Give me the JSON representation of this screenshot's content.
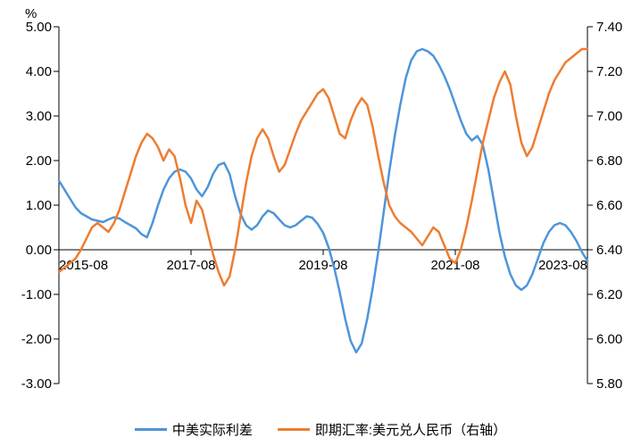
{
  "chart": {
    "type": "line",
    "unit_label": "%",
    "background_color": "#ffffff",
    "axis_color": "#000000",
    "tick_length": 6,
    "line_width": 2.5,
    "title_fontsize": 15,
    "label_fontsize": 15,
    "y_left": {
      "min": -3.0,
      "max": 5.0,
      "ticks": [
        -3.0,
        -2.0,
        -1.0,
        0.0,
        1.0,
        2.0,
        3.0,
        4.0,
        5.0
      ],
      "tick_labels": [
        "-3.00",
        "-2.00",
        "-1.00",
        "0.00",
        "1.00",
        "2.00",
        "3.00",
        "4.00",
        "5.00"
      ]
    },
    "y_right": {
      "min": 5.8,
      "max": 7.4,
      "ticks": [
        5.8,
        6.0,
        6.2,
        6.4,
        6.6,
        6.8,
        7.0,
        7.2,
        7.4
      ],
      "tick_labels": [
        "5.80",
        "6.00",
        "6.20",
        "6.40",
        "6.60",
        "6.80",
        "7.00",
        "7.20",
        "7.40"
      ]
    },
    "x": {
      "categories": [
        "2015-08",
        "2017-08",
        "2019-08",
        "2021-08",
        "2023-08"
      ],
      "n_points": 97
    },
    "series": [
      {
        "name": "中美实际利差",
        "color": "#4e95d9",
        "axis": "left",
        "values": [
          1.55,
          1.35,
          1.15,
          0.95,
          0.82,
          0.75,
          0.68,
          0.65,
          0.62,
          0.68,
          0.73,
          0.7,
          0.62,
          0.55,
          0.48,
          0.35,
          0.28,
          0.6,
          1.0,
          1.35,
          1.6,
          1.75,
          1.8,
          1.75,
          1.6,
          1.35,
          1.2,
          1.4,
          1.7,
          1.9,
          1.95,
          1.7,
          1.2,
          0.8,
          0.55,
          0.45,
          0.55,
          0.75,
          0.88,
          0.82,
          0.68,
          0.55,
          0.5,
          0.55,
          0.65,
          0.75,
          0.72,
          0.58,
          0.38,
          0.05,
          -0.4,
          -0.95,
          -1.55,
          -2.05,
          -2.3,
          -2.1,
          -1.55,
          -0.85,
          -0.05,
          0.85,
          1.75,
          2.55,
          3.25,
          3.85,
          4.25,
          4.45,
          4.5,
          4.45,
          4.35,
          4.15,
          3.9,
          3.6,
          3.25,
          2.9,
          2.6,
          2.45,
          2.55,
          2.35,
          1.8,
          1.1,
          0.4,
          -0.15,
          -0.55,
          -0.8,
          -0.9,
          -0.8,
          -0.55,
          -0.2,
          0.15,
          0.4,
          0.55,
          0.6,
          0.55,
          0.4,
          0.2,
          -0.05,
          -0.25
        ]
      },
      {
        "name": "即期汇率:美元兑人民币（右轴）",
        "color": "#ed7d31",
        "axis": "right",
        "values": [
          6.3,
          6.32,
          6.34,
          6.36,
          6.4,
          6.45,
          6.5,
          6.52,
          6.5,
          6.48,
          6.52,
          6.58,
          6.66,
          6.74,
          6.82,
          6.88,
          6.92,
          6.9,
          6.86,
          6.8,
          6.85,
          6.82,
          6.72,
          6.6,
          6.52,
          6.62,
          6.58,
          6.48,
          6.38,
          6.3,
          6.24,
          6.28,
          6.4,
          6.55,
          6.7,
          6.82,
          6.9,
          6.94,
          6.9,
          6.82,
          6.75,
          6.78,
          6.85,
          6.92,
          6.98,
          7.02,
          7.06,
          7.1,
          7.12,
          7.08,
          7.0,
          6.92,
          6.9,
          6.98,
          7.04,
          7.08,
          7.05,
          6.95,
          6.82,
          6.7,
          6.6,
          6.55,
          6.52,
          6.5,
          6.48,
          6.45,
          6.42,
          6.46,
          6.5,
          6.48,
          6.42,
          6.36,
          6.34,
          6.4,
          6.5,
          6.62,
          6.75,
          6.88,
          6.98,
          7.08,
          7.15,
          7.2,
          7.14,
          7.0,
          6.88,
          6.82,
          6.86,
          6.94,
          7.02,
          7.1,
          7.16,
          7.2,
          7.24,
          7.26,
          7.28,
          7.3,
          7.3
        ]
      }
    ],
    "legend": {
      "items": [
        {
          "label": "中美实际利差",
          "color": "#4e95d9"
        },
        {
          "label": "即期汇率:美元兑人民币（右轴）",
          "color": "#ed7d31"
        }
      ]
    }
  }
}
